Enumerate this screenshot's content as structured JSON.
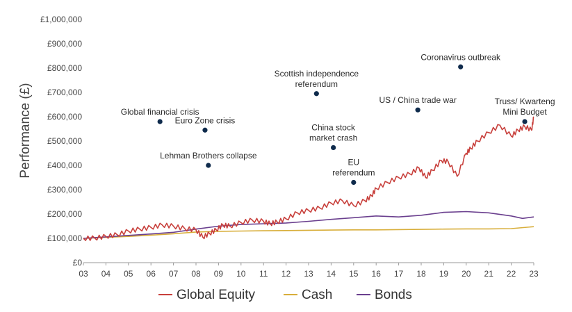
{
  "chart_data": {
    "type": "line",
    "title": "",
    "xlabel": "",
    "ylabel": "Performance (£)",
    "x_ticks": [
      "03",
      "04",
      "05",
      "06",
      "07",
      "08",
      "09",
      "10",
      "11",
      "12",
      "13",
      "14",
      "15",
      "16",
      "17",
      "18",
      "19",
      "20",
      "21",
      "22",
      "23"
    ],
    "y_ticks": [
      "£0",
      "£100,000",
      "£200,000",
      "£300,000",
      "£400,000",
      "£500,000",
      "£600,000",
      "£700,000",
      "£800,000",
      "£900,000",
      "£1,000,000"
    ],
    "xlim": [
      2003,
      2023
    ],
    "ylim": [
      0,
      1000000
    ],
    "grid": false,
    "legend_position": "bottom",
    "series": [
      {
        "name": "Global Equity",
        "color": "#c8403c",
        "x": [
          2003.0,
          2003.5,
          2004.0,
          2004.5,
          2005.0,
          2005.5,
          2006.0,
          2006.5,
          2007.0,
          2007.5,
          2008.0,
          2008.3,
          2008.6,
          2008.9,
          2009.2,
          2009.5,
          2010.0,
          2010.5,
          2011.0,
          2011.3,
          2011.6,
          2012.0,
          2012.5,
          2013.0,
          2013.5,
          2014.0,
          2014.5,
          2015.0,
          2015.5,
          2015.8,
          2016.0,
          2016.5,
          2017.0,
          2017.5,
          2017.9,
          2018.2,
          2018.5,
          2018.9,
          2019.2,
          2019.6,
          2020.0,
          2020.2,
          2020.5,
          2021.0,
          2021.5,
          2022.0,
          2022.3,
          2022.6,
          2022.9,
          2023.0
        ],
        "values": [
          100000,
          101000,
          108000,
          115000,
          130000,
          138000,
          145000,
          155000,
          150000,
          140000,
          135000,
          105000,
          120000,
          135000,
          155000,
          150000,
          165000,
          175000,
          170000,
          160000,
          168000,
          180000,
          205000,
          215000,
          225000,
          245000,
          255000,
          235000,
          255000,
          275000,
          305000,
          330000,
          350000,
          365000,
          390000,
          350000,
          380000,
          420000,
          415000,
          355000,
          450000,
          470000,
          500000,
          535000,
          565000,
          520000,
          545000,
          560000,
          545000,
          600000
        ]
      },
      {
        "name": "Cash",
        "color": "#d8ae3a",
        "x": [
          2003,
          2004,
          2005,
          2006,
          2007,
          2008,
          2009,
          2010,
          2011,
          2012,
          2013,
          2014,
          2015,
          2016,
          2017,
          2018,
          2019,
          2020,
          2021,
          2022,
          2023
        ],
        "values": [
          100000,
          104000,
          108000,
          113000,
          119000,
          126000,
          129000,
          130000,
          131000,
          132000,
          133000,
          134000,
          135000,
          135000,
          136000,
          137000,
          138000,
          139000,
          139000,
          140000,
          148000
        ]
      },
      {
        "name": "Bonds",
        "color": "#6a3f8e",
        "x": [
          2003,
          2004,
          2005,
          2006,
          2007,
          2008,
          2009,
          2010,
          2011,
          2012,
          2013,
          2014,
          2015,
          2016,
          2017,
          2018,
          2019,
          2020,
          2021,
          2022,
          2022.5,
          2023
        ],
        "values": [
          100000,
          106000,
          112000,
          118000,
          125000,
          138000,
          150000,
          157000,
          160000,
          163000,
          170000,
          178000,
          185000,
          192000,
          188000,
          195000,
          207000,
          210000,
          205000,
          192000,
          182000,
          188000
        ]
      }
    ],
    "annotations": [
      {
        "lines": [
          "Global financial crisis"
        ],
        "x": 2006.4,
        "y": 580000
      },
      {
        "lines": [
          "Euro Zone crisis"
        ],
        "x": 2008.4,
        "y": 545000
      },
      {
        "lines": [
          "Lehman Brothers collapse"
        ],
        "x": 2008.55,
        "y": 400000
      },
      {
        "lines": [
          "Scottish  independence",
          "referendum"
        ],
        "x": 2013.35,
        "y": 695000
      },
      {
        "lines": [
          "China stock",
          "market crash"
        ],
        "x": 2014.1,
        "y": 473000
      },
      {
        "lines": [
          "EU",
          "referendum"
        ],
        "x": 2015.0,
        "y": 330000
      },
      {
        "lines": [
          "US / China trade war"
        ],
        "x": 2017.85,
        "y": 628000
      },
      {
        "lines": [
          "Coronavirus outbreak"
        ],
        "x": 2019.75,
        "y": 805000
      },
      {
        "lines": [
          "Truss/ Kwarteng",
          "Mini Budget"
        ],
        "x": 2022.6,
        "y": 580000
      }
    ],
    "marker_color": "#0f2b4c"
  }
}
